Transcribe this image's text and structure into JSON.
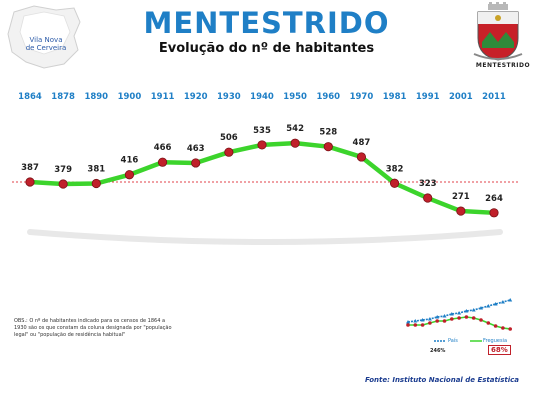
{
  "title": "MENTESTRIDO",
  "subtitle": "Evolução do nº de habitantes",
  "municipality": {
    "line1": "Vila Nova",
    "line2": "de Cerveira"
  },
  "crest_label": "MENTESTRIDO",
  "chart_data": {
    "type": "line",
    "x": [
      "1864",
      "1878",
      "1890",
      "1900",
      "1911",
      "1920",
      "1930",
      "1940",
      "1950",
      "1960",
      "1970",
      "1981",
      "1991",
      "2001",
      "2011"
    ],
    "series": [
      {
        "name": "",
        "values": [
          387,
          379,
          381,
          416,
          466,
          463,
          506,
          535,
          542,
          528,
          487,
          382,
          323,
          271,
          264
        ]
      }
    ],
    "reference_value": 387,
    "line_color": "#3cd42c",
    "marker_color": "#c0202a",
    "year_color": "#1f7fc6",
    "ref_line_color": "#e0404a"
  },
  "inset": {
    "legend_country": "País",
    "legend_parish": "Freguesia",
    "value_country": "246%",
    "value_parish": "68%"
  },
  "note": "OBS.: O nº de habitantes indicado para os censos de 1864 a 1930 são os que constam da coluna designada por \"população legal\" ou \"população de residência habitual\"",
  "source": "Fonte: Instituto Nacional de Estatística"
}
